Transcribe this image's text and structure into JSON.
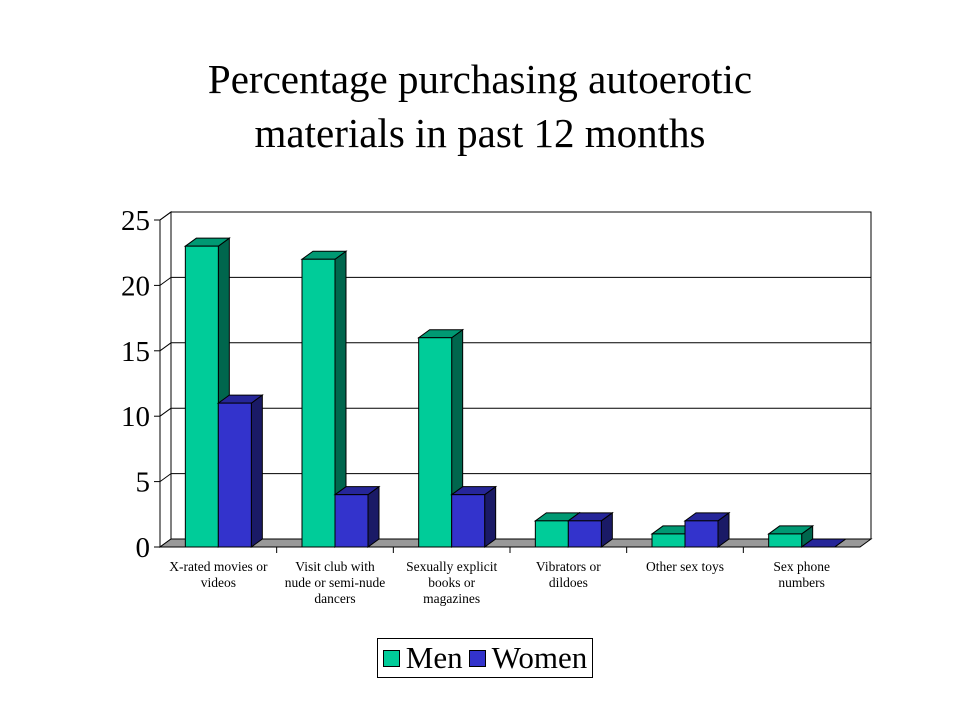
{
  "chart_data": {
    "type": "bar",
    "title_lines": [
      "Percentage purchasing autoerotic",
      "materials in past 12 months"
    ],
    "categories": [
      [
        "X-rated movies or",
        "videos"
      ],
      [
        "Visit club with",
        "nude or semi-nude",
        "dancers"
      ],
      [
        "Sexually explicit",
        "books or",
        "magazines"
      ],
      [
        "Vibrators or",
        "dildoes"
      ],
      [
        "Other sex toys"
      ],
      [
        "Sex phone",
        "numbers"
      ]
    ],
    "series": [
      {
        "name": "Men",
        "values": [
          23,
          22,
          16,
          2,
          1,
          1
        ],
        "color": "#00CC99"
      },
      {
        "name": "Women",
        "values": [
          11,
          4,
          4,
          2,
          2,
          0
        ],
        "color": "#3333CC"
      }
    ],
    "y_ticks": [
      "0",
      "5",
      "10",
      "15",
      "20",
      "25"
    ],
    "ylim": [
      0,
      25
    ],
    "grid": true,
    "legend_position": "bottom-center",
    "style": "3d-clustered-bar"
  }
}
